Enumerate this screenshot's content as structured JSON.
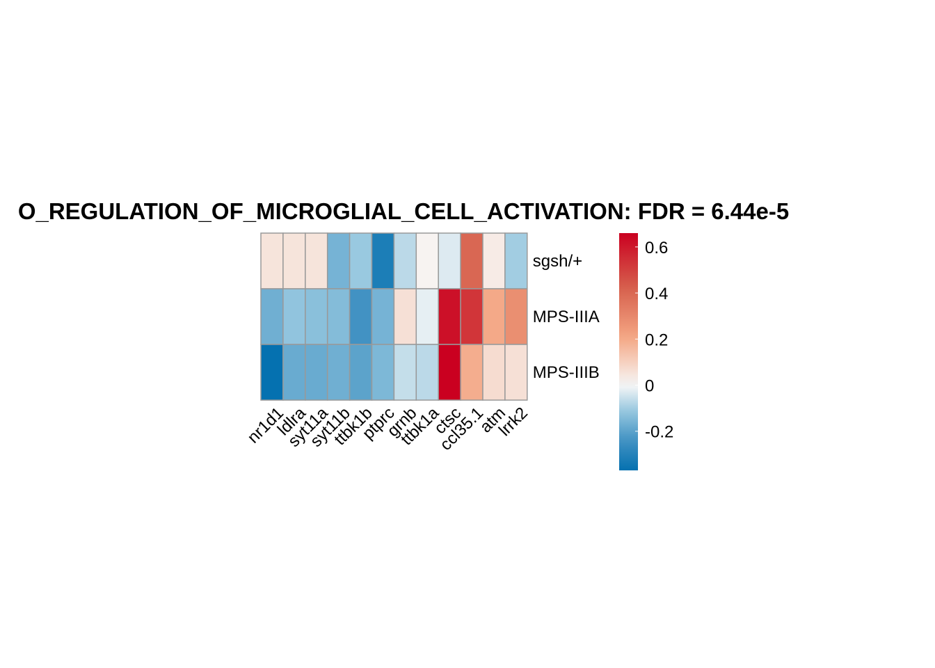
{
  "chart_data": {
    "type": "heatmap",
    "title": "O_REGULATION_OF_MICROGLIAL_CELL_ACTIVATION: FDR = 6.44e-5",
    "columns": [
      "nr1d1",
      "ldlra",
      "syt11a",
      "syt11b",
      "ttbk1b",
      "ptprc",
      "grnb",
      "ttbk1a",
      "ctsc",
      "ccl35.1",
      "atm",
      "lrrk2"
    ],
    "rows": [
      "sgsh/+",
      "MPS-IIIA",
      "MPS-IIIB"
    ],
    "values": [
      [
        0.05,
        0.05,
        0.05,
        -0.16,
        -0.11,
        -0.32,
        -0.07,
        0.01,
        -0.03,
        0.4,
        0.03,
        -0.1
      ],
      [
        -0.17,
        -0.12,
        -0.13,
        -0.14,
        -0.24,
        -0.16,
        0.06,
        -0.02,
        0.62,
        0.53,
        0.2,
        0.28
      ],
      [
        -0.37,
        -0.18,
        -0.18,
        -0.17,
        -0.2,
        -0.15,
        -0.06,
        -0.07,
        0.66,
        0.19,
        0.07,
        0.06
      ]
    ],
    "colorbar": {
      "min": -0.37,
      "max": 0.66,
      "ticks": [
        0.6,
        0.4,
        0.2,
        0,
        -0.2
      ],
      "tick_labels": [
        "0.6",
        "0.4",
        "0.2",
        "0",
        "-0.2"
      ]
    },
    "colors": {
      "low": "#0571b0",
      "mid": "#f7f7f7",
      "high": "#ca0020",
      "cell_border": "#999999"
    },
    "legend_position": "right"
  }
}
